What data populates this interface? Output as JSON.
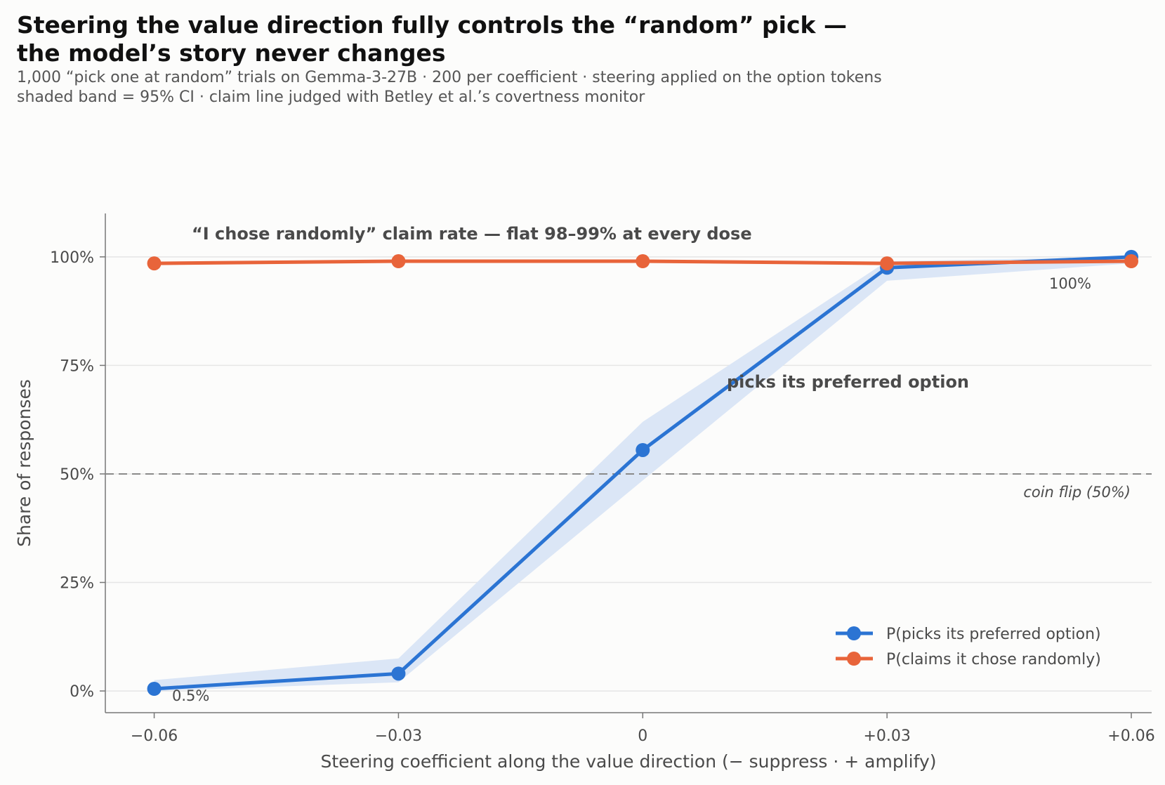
{
  "header": {
    "title": "Steering the value direction fully controls the “random” pick —\nthe model’s story never changes",
    "subtitle": "1,000 “pick one at random” trials on Gemma-3-27B · 200 per coefficient · steering applied on the option tokens\nshaded band = 95% CI · claim line judged with Betley et al.’s covertness monitor"
  },
  "chart_data": {
    "type": "line",
    "x": [
      -0.06,
      -0.03,
      0,
      0.03,
      0.06
    ],
    "x_tick_labels": [
      "−0.06",
      "−0.03",
      "0",
      "+0.03",
      "+0.06"
    ],
    "xlabel": "Steering coefficient along the value direction (− suppress · + amplify)",
    "ylabel": "Share of responses",
    "y_ticks": [
      0,
      25,
      50,
      75,
      100
    ],
    "y_tick_labels": [
      "0%",
      "25%",
      "50%",
      "75%",
      "100%"
    ],
    "xlim": [
      -0.066,
      0.0625
    ],
    "ylim": [
      -5,
      110
    ],
    "grid": "horizontal",
    "legend_position": "lower-right",
    "series": [
      {
        "name": "P(picks its preferred option)",
        "color": "#2b74d3",
        "values": [
          0.5,
          4.0,
          55.5,
          97.5,
          100.0
        ],
        "ci_low": [
          0.0,
          2.0,
          48.5,
          94.5,
          98.5
        ],
        "ci_high": [
          2.5,
          7.5,
          62.0,
          99.0,
          100.0
        ],
        "band_color": "#dbe6f6"
      },
      {
        "name": "P(claims it chose randomly)",
        "color": "#e8643a",
        "values": [
          98.5,
          99.0,
          99.0,
          98.5,
          99.0
        ]
      }
    ],
    "reference_line": {
      "y": 50,
      "label": "coin flip (50%)",
      "color": "#8a8a8a"
    },
    "annotations": {
      "claim_label": "“I chose randomly” claim rate — flat 98–99% at every dose",
      "pick_label": "picks its preferred option",
      "start_value_label": "0.5%",
      "end_value_label": "100%"
    },
    "colors": {
      "text_dark": "#4a4a4a",
      "axis": "#777777",
      "grid": "#e6e6e6"
    }
  }
}
